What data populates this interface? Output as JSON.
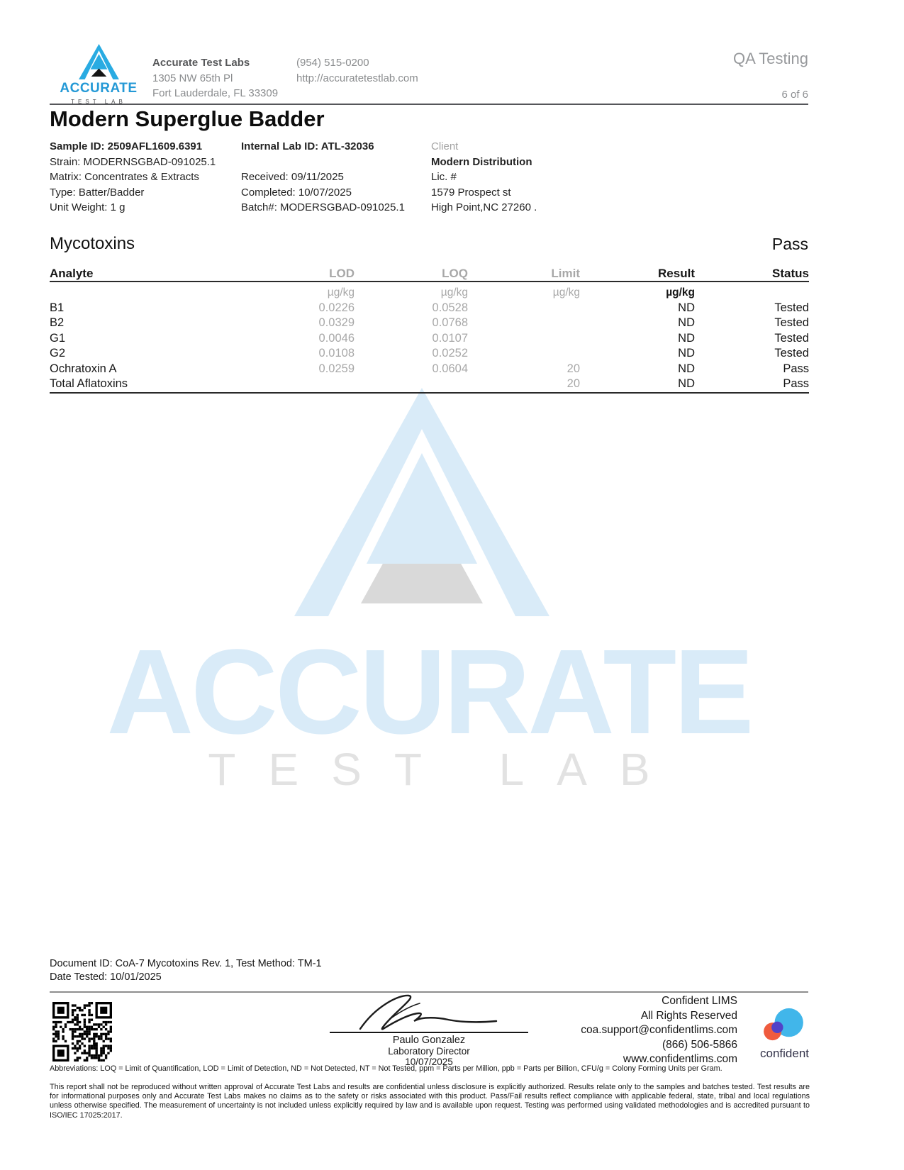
{
  "header": {
    "logo_word": "ACCURATE",
    "logo_sub": "TEST LAB",
    "lab_name": "Accurate Test Labs",
    "address_line1": "1305 NW 65th Pl",
    "address_line2": "Fort Lauderdale, FL 33309",
    "phone": "(954) 515-0200",
    "website": "http://accuratetestlab.com",
    "qa_label": "QA Testing",
    "page_indicator": "6 of 6"
  },
  "report": {
    "title": "Modern Superglue Badder"
  },
  "sample_info": {
    "col1": [
      "Sample ID: 2509AFL1609.6391",
      "Strain: MODERNSGBAD-091025.1",
      "Matrix: Concentrates & Extracts",
      "Type: Batter/Badder",
      "Unit Weight: 1 g"
    ],
    "col2": [
      "Internal Lab ID: ATL-32036",
      "",
      "Received: 09/11/2025",
      "Completed: 10/07/2025",
      "Batch#: MODERSGBAD-091025.1"
    ],
    "col3": [
      "Client",
      "Modern Distribution",
      "Lic. #",
      "1579 Prospect st",
      "High Point,NC 27260 ."
    ]
  },
  "mycotoxins": {
    "section_title": "Mycotoxins",
    "section_status": "Pass",
    "columns": [
      "Analyte",
      "LOD",
      "LOQ",
      "Limit",
      "Result",
      "Status"
    ],
    "units": [
      "",
      "µg/kg",
      "µg/kg",
      "µg/kg",
      "µg/kg",
      ""
    ],
    "rows": [
      {
        "analyte": "B1",
        "lod": "0.0226",
        "loq": "0.0528",
        "limit": "",
        "result": "ND",
        "status": "Tested"
      },
      {
        "analyte": "B2",
        "lod": "0.0329",
        "loq": "0.0768",
        "limit": "",
        "result": "ND",
        "status": "Tested"
      },
      {
        "analyte": "G1",
        "lod": "0.0046",
        "loq": "0.0107",
        "limit": "",
        "result": "ND",
        "status": "Tested"
      },
      {
        "analyte": "G2",
        "lod": "0.0108",
        "loq": "0.0252",
        "limit": "",
        "result": "ND",
        "status": "Tested"
      },
      {
        "analyte": "Ochratoxin A",
        "lod": "0.0259",
        "loq": "0.0604",
        "limit": "20",
        "result": "ND",
        "status": "Pass"
      },
      {
        "analyte": "Total Aflatoxins",
        "lod": "",
        "loq": "",
        "limit": "20",
        "result": "ND",
        "status": "Pass"
      }
    ]
  },
  "watermark": {
    "word": "ACCURATE",
    "sub": "TEST LAB"
  },
  "footer": {
    "document_id": "Document ID: CoA-7 Mycotoxins Rev. 1, Test Method: TM-1",
    "date_tested": "Date Tested: 10/01/2025",
    "signer_name": "Paulo Gonzalez",
    "signer_title": "Laboratory Director",
    "sign_date": "10/07/2025",
    "lims_name": "Confident LIMS",
    "lims_rights": "All Rights Reserved",
    "lims_email": "coa.support@confidentlims.com",
    "lims_phone": "(866) 506-5866",
    "lims_website": "www.confidentlims.com",
    "confident_label": "confident",
    "abbreviations": "Abbreviations: LOQ = Limit of Quantification, LOD = Limit of Detection, ND = Not Detected, NT = Not Tested, ppm = Parts per Million, ppb = Parts per Billion, CFU/g = Colony Forming Units per Gram.",
    "disclaimer": "This report shall not be reproduced without written approval of Accurate Test Labs and results are confidential unless disclosure is explicitly authorized. Results relate only to the samples and batches tested. Test results are for informational purposes only and Accurate Test Labs makes no claims as to the safety or risks associated with this product. Pass/Fail results reflect compliance with applicable federal, state, tribal and local regulations unless otherwise specified. The measurement of uncertainty is not included unless explicitly required by law and is available upon request. Testing was performed using validated methodologies and is accredited pursuant to ISO/IEC 17025:2017."
  },
  "colors": {
    "brand_blue": "#29abe2",
    "watermark_blue": "#d9ebf8",
    "watermark_gray": "#d9d9d9",
    "confident_blue": "#41b6ea",
    "confident_orange": "#ef5b3e",
    "confident_purple": "#5242c8"
  }
}
